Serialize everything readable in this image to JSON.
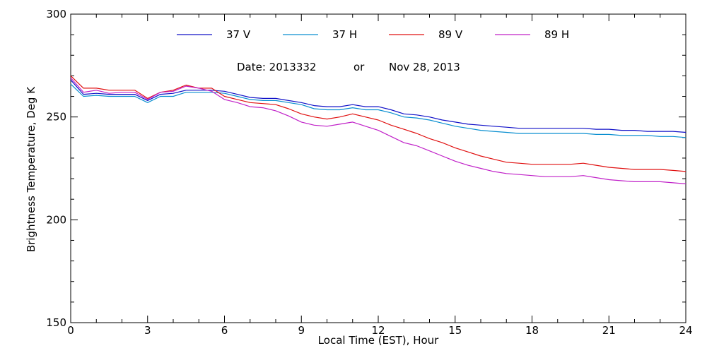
{
  "chart_data": {
    "type": "line",
    "xlabel": "Local Time (EST), Hour",
    "ylabel": "Brightness Temperature, Deg K",
    "xlim": [
      0,
      24
    ],
    "ylim": [
      150,
      300
    ],
    "xticks": [
      0,
      3,
      6,
      9,
      12,
      15,
      18,
      21,
      24
    ],
    "yticks": [
      150,
      200,
      250,
      300
    ],
    "grid": false,
    "legend_position": "top",
    "annotation": {
      "date_label": "Date: 2013332",
      "or_label": "or",
      "date_text": "Nov 28, 2013"
    },
    "series": [
      {
        "name": "37 V",
        "color": "#1010c8",
        "x": [
          0,
          0.5,
          1,
          1.5,
          2,
          2.5,
          3,
          3.5,
          4,
          4.5,
          5,
          5.5,
          6,
          6.5,
          7,
          7.5,
          8,
          8.5,
          9,
          9.5,
          10,
          10.5,
          11,
          11.5,
          12,
          12.5,
          13,
          13.5,
          14,
          14.5,
          15,
          15.5,
          16,
          16.5,
          17,
          17.5,
          18,
          18.5,
          19,
          19.5,
          20,
          20.5,
          21,
          21.5,
          22,
          22.5,
          23,
          23.5,
          24
        ],
        "y": [
          268,
          261,
          261.5,
          261,
          261,
          261,
          258,
          261,
          261.5,
          263,
          263,
          263,
          262.5,
          261,
          259.5,
          259,
          259,
          258,
          257,
          255.5,
          255,
          255,
          256,
          255,
          255,
          253.5,
          251.5,
          251,
          250,
          248.5,
          247.5,
          246.5,
          246,
          245.5,
          245,
          244.5,
          244.5,
          244.5,
          244.5,
          244.5,
          244.5,
          244,
          244,
          243.5,
          243.5,
          243,
          243,
          243,
          242.5
        ]
      },
      {
        "name": "37 H",
        "color": "#0a8fd0",
        "x": [
          0,
          0.5,
          1,
          1.5,
          2,
          2.5,
          3,
          3.5,
          4,
          4.5,
          5,
          5.5,
          6,
          6.5,
          7,
          7.5,
          8,
          8.5,
          9,
          9.5,
          10,
          10.5,
          11,
          11.5,
          12,
          12.5,
          13,
          13.5,
          14,
          14.5,
          15,
          15.5,
          16,
          16.5,
          17,
          17.5,
          18,
          18.5,
          19,
          19.5,
          20,
          20.5,
          21,
          21.5,
          22,
          22.5,
          23,
          23.5,
          24
        ],
        "y": [
          266,
          260,
          260.5,
          260,
          260,
          260,
          257,
          260,
          260,
          262,
          262,
          262,
          261.5,
          260,
          258.5,
          258,
          258,
          257,
          256,
          254,
          253.5,
          253.5,
          254.5,
          253.5,
          253.5,
          252,
          250,
          249.5,
          248.5,
          247,
          245.5,
          244.5,
          243.5,
          243,
          242.5,
          242,
          242,
          242,
          242,
          242,
          242,
          241.5,
          241.5,
          241,
          241,
          241,
          240.5,
          240.5,
          240
        ]
      },
      {
        "name": "89 V",
        "color": "#e01010",
        "x": [
          0,
          0.5,
          1,
          1.5,
          2,
          2.5,
          3,
          3.5,
          4,
          4.5,
          5,
          5.5,
          6,
          6.5,
          7,
          7.5,
          8,
          8.5,
          9,
          9.5,
          10,
          10.5,
          11,
          11.5,
          12,
          12.5,
          13,
          13.5,
          14,
          14.5,
          15,
          15.5,
          16,
          16.5,
          17,
          17.5,
          18,
          18.5,
          19,
          19.5,
          20,
          20.5,
          21,
          21.5,
          22,
          22.5,
          23,
          23.5,
          24
        ],
        "y": [
          270,
          264,
          264,
          263,
          263,
          263,
          259,
          262,
          263,
          265.5,
          264,
          264,
          260,
          258.5,
          257,
          256.5,
          256,
          254,
          251.5,
          250,
          249,
          250,
          251.5,
          250,
          248.5,
          246,
          244,
          242,
          239.5,
          237.5,
          235,
          233,
          231,
          229.5,
          228,
          227.5,
          227,
          227,
          227,
          227,
          227.5,
          226.5,
          225.5,
          225,
          224.5,
          224.5,
          224.5,
          224,
          223.5
        ]
      },
      {
        "name": "89 H",
        "color": "#c020c8",
        "x": [
          0,
          0.5,
          1,
          1.5,
          2,
          2.5,
          3,
          3.5,
          4,
          4.5,
          5,
          5.5,
          6,
          6.5,
          7,
          7.5,
          8,
          8.5,
          9,
          9.5,
          10,
          10.5,
          11,
          11.5,
          12,
          12.5,
          13,
          13.5,
          14,
          14.5,
          15,
          15.5,
          16,
          16.5,
          17,
          17.5,
          18,
          18.5,
          19,
          19.5,
          20,
          20.5,
          21,
          21.5,
          22,
          22.5,
          23,
          23.5,
          24
        ],
        "y": [
          269,
          262,
          263,
          261.5,
          262,
          262,
          258.5,
          262,
          262.5,
          265,
          264,
          262.5,
          258.5,
          257,
          255,
          254.5,
          253,
          250.5,
          247.5,
          246,
          245.5,
          246.5,
          247.5,
          245.5,
          243.5,
          240.5,
          237.5,
          236,
          233.5,
          231,
          228.5,
          226.5,
          225,
          223.5,
          222.5,
          222,
          221.5,
          221,
          221,
          221,
          221.5,
          220.5,
          219.5,
          219,
          218.5,
          218.5,
          218.5,
          218,
          217.5
        ]
      }
    ]
  }
}
